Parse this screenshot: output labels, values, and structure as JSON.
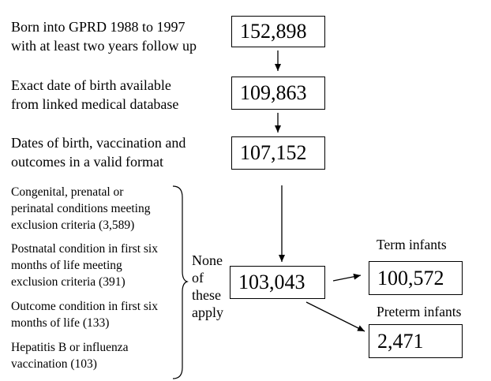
{
  "steps": [
    {
      "text_l1": "Born into GPRD 1988 to 1997",
      "text_l2": "with at least two  years follow up",
      "count": "152,898"
    },
    {
      "text_l1": "Exact date of birth available",
      "text_l2": "from linked medical database",
      "count": "109,863"
    },
    {
      "text_l1": "Dates of birth, vaccination and",
      "text_l2": "outcomes in a valid format",
      "count": "107,152"
    }
  ],
  "exclusions": [
    {
      "l1": "Congenital, prenatal or",
      "l2": "perinatal conditions meeting",
      "l3": "exclusion criteria (3,589)"
    },
    {
      "l1": "Postnatal condition in first six",
      "l2": "months of life  meeting",
      "l3": "exclusion criteria (391)"
    },
    {
      "l1": "Outcome condition in first six",
      "l2": "months of life (133)"
    },
    {
      "l1": "Hepatitis B or influenza",
      "l2": "vaccination (103)"
    }
  ],
  "none_apply": {
    "l1": "None",
    "l2": "of",
    "l3": "these",
    "l4": "apply"
  },
  "final_count": "103,043",
  "term": {
    "label": "Term infants",
    "count": "100,572"
  },
  "preterm": {
    "label": "Preterm infants",
    "count": "2,471"
  }
}
